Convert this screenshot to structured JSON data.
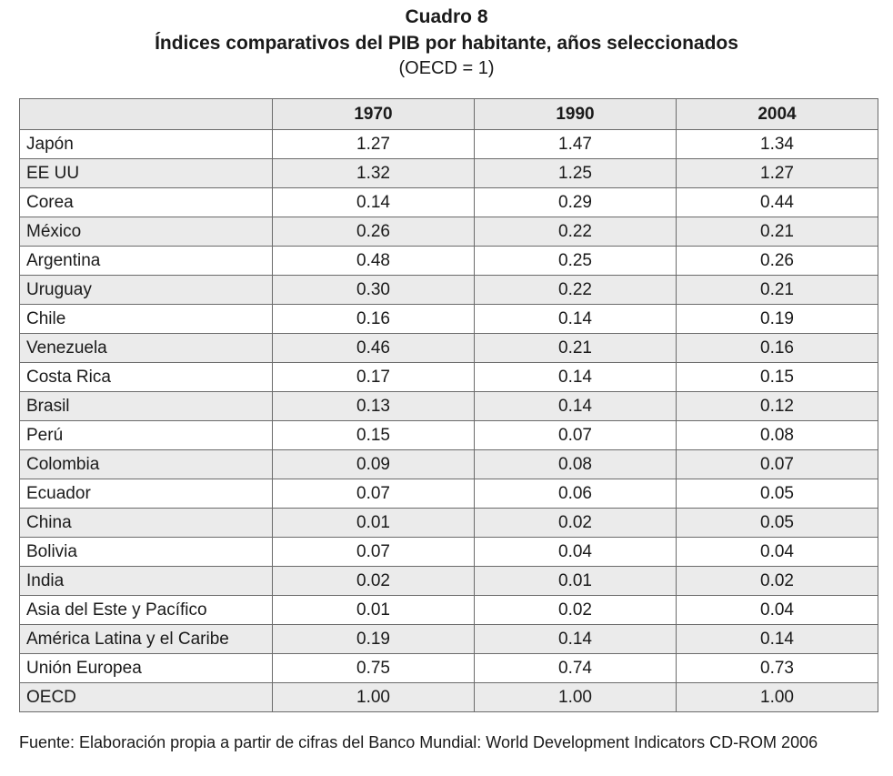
{
  "title": {
    "line1": "Cuadro 8",
    "line2": "Índices comparativos del PIB por habitante, años seleccionados",
    "line3": "(OECD = 1)"
  },
  "table": {
    "headers": [
      "",
      "1970",
      "1990",
      "2004"
    ],
    "rows": [
      {
        "country": "Japón",
        "v1970": "1.27",
        "v1990": "1.47",
        "v2004": "1.34"
      },
      {
        "country": "EE UU",
        "v1970": "1.32",
        "v1990": "1.25",
        "v2004": "1.27"
      },
      {
        "country": "Corea",
        "v1970": "0.14",
        "v1990": "0.29",
        "v2004": "0.44"
      },
      {
        "country": "México",
        "v1970": "0.26",
        "v1990": "0.22",
        "v2004": "0.21"
      },
      {
        "country": "Argentina",
        "v1970": "0.48",
        "v1990": "0.25",
        "v2004": "0.26"
      },
      {
        "country": "Uruguay",
        "v1970": "0.30",
        "v1990": "0.22",
        "v2004": "0.21"
      },
      {
        "country": "Chile",
        "v1970": "0.16",
        "v1990": "0.14",
        "v2004": "0.19"
      },
      {
        "country": "Venezuela",
        "v1970": "0.46",
        "v1990": "0.21",
        "v2004": "0.16"
      },
      {
        "country": "Costa Rica",
        "v1970": "0.17",
        "v1990": "0.14",
        "v2004": "0.15"
      },
      {
        "country": "Brasil",
        "v1970": "0.13",
        "v1990": "0.14",
        "v2004": "0.12"
      },
      {
        "country": "Perú",
        "v1970": "0.15",
        "v1990": "0.07",
        "v2004": "0.08"
      },
      {
        "country": "Colombia",
        "v1970": "0.09",
        "v1990": "0.08",
        "v2004": "0.07"
      },
      {
        "country": "Ecuador",
        "v1970": "0.07",
        "v1990": "0.06",
        "v2004": "0.05"
      },
      {
        "country": "China",
        "v1970": "0.01",
        "v1990": "0.02",
        "v2004": "0.05"
      },
      {
        "country": "Bolivia",
        "v1970": "0.07",
        "v1990": "0.04",
        "v2004": "0.04"
      },
      {
        "country": "India",
        "v1970": "0.02",
        "v1990": "0.01",
        "v2004": "0.02"
      },
      {
        "country": "Asia del Este y Pacífico",
        "v1970": "0.01",
        "v1990": "0.02",
        "v2004": "0.04"
      },
      {
        "country": "América Latina y el Caribe",
        "v1970": "0.19",
        "v1990": "0.14",
        "v2004": "0.14"
      },
      {
        "country": "Unión Europea",
        "v1970": "0.75",
        "v1990": "0.74",
        "v2004": "0.73"
      },
      {
        "country": "OECD",
        "v1970": "1.00",
        "v1990": "1.00",
        "v2004": "1.00"
      }
    ]
  },
  "source": "Fuente: Elaboración propia a partir de cifras del Banco Mundial: World Development Indicators CD-ROM 2006"
}
